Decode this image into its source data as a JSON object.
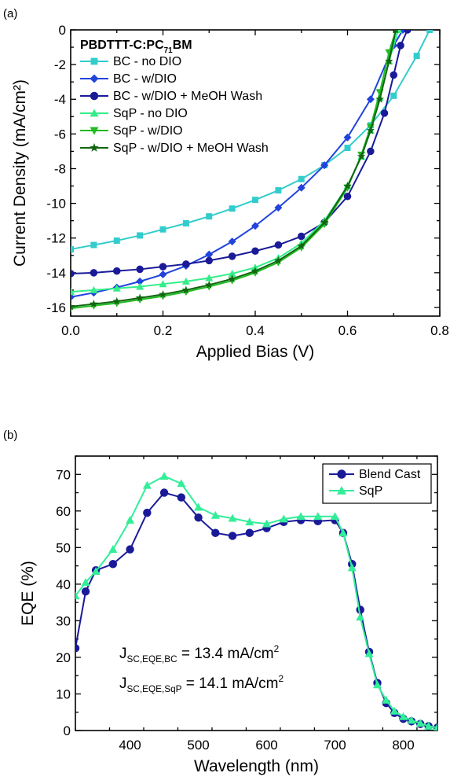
{
  "figure": {
    "panel_a_label": "(a)",
    "panel_b_label": "(b)"
  },
  "chart_data": [
    {
      "type": "line",
      "panel": "(a)",
      "xlabel": "Applied Bias (V)",
      "ylabel": "Current Density (mA/cm²)",
      "xlim": [
        0.0,
        0.8
      ],
      "ylim": [
        -16.5,
        0
      ],
      "xticks": [
        "0.0",
        "0.2",
        "0.4",
        "0.6",
        "0.8"
      ],
      "yticks": [
        "0",
        "-2",
        "-4",
        "-6",
        "-8",
        "-10",
        "-12",
        "-14",
        "-16"
      ],
      "grid": false,
      "legend_position": "top-left",
      "legend_title": {
        "main": "PBDTTT-C:PC",
        "sub": "71",
        "tail": "BM"
      },
      "series": [
        {
          "name": "BC - no DIO",
          "color": "#33cccc",
          "marker": "square",
          "x": [
            0.0,
            0.05,
            0.1,
            0.15,
            0.2,
            0.25,
            0.3,
            0.35,
            0.4,
            0.45,
            0.5,
            0.55,
            0.6,
            0.65,
            0.7,
            0.75,
            0.778
          ],
          "y": [
            -12.65,
            -12.4,
            -12.15,
            -11.85,
            -11.5,
            -11.15,
            -10.75,
            -10.3,
            -9.8,
            -9.25,
            -8.6,
            -7.8,
            -6.8,
            -5.5,
            -3.8,
            -1.5,
            0
          ]
        },
        {
          "name": "BC - w/DIO",
          "color": "#2244dd",
          "marker": "diamond",
          "x": [
            0.0,
            0.05,
            0.1,
            0.15,
            0.2,
            0.25,
            0.3,
            0.35,
            0.4,
            0.45,
            0.5,
            0.55,
            0.6,
            0.65,
            0.7,
            0.72
          ],
          "y": [
            -15.4,
            -15.15,
            -14.85,
            -14.5,
            -14.1,
            -13.6,
            -12.95,
            -12.2,
            -11.3,
            -10.25,
            -9.1,
            -7.8,
            -6.2,
            -4.0,
            -0.9,
            0
          ]
        },
        {
          "name": "BC - w/DIO + MeOH Wash",
          "color": "#1a1a99",
          "marker": "circle",
          "x": [
            0.0,
            0.05,
            0.1,
            0.15,
            0.2,
            0.25,
            0.3,
            0.35,
            0.4,
            0.45,
            0.5,
            0.55,
            0.6,
            0.65,
            0.68,
            0.7,
            0.715,
            0.73
          ],
          "y": [
            -14.05,
            -14.0,
            -13.9,
            -13.8,
            -13.65,
            -13.5,
            -13.3,
            -13.05,
            -12.75,
            -12.4,
            -11.9,
            -11.1,
            -9.6,
            -7.0,
            -4.8,
            -2.6,
            -0.9,
            0
          ]
        },
        {
          "name": "SqP - no DIO",
          "color": "#33ee88",
          "marker": "triangle-up",
          "x": [
            0.0,
            0.05,
            0.1,
            0.15,
            0.2,
            0.25,
            0.3,
            0.35,
            0.4,
            0.45,
            0.5,
            0.55,
            0.6,
            0.63,
            0.65,
            0.67,
            0.69,
            0.71
          ],
          "y": [
            -15.1,
            -15.0,
            -14.9,
            -14.8,
            -14.65,
            -14.5,
            -14.3,
            -14.05,
            -13.7,
            -13.15,
            -12.3,
            -11.0,
            -9.0,
            -7.3,
            -5.8,
            -3.9,
            -1.8,
            0
          ]
        },
        {
          "name": "SqP - w/DIO",
          "color": "#22bb22",
          "marker": "triangle-down",
          "x": [
            0.0,
            0.05,
            0.1,
            0.15,
            0.2,
            0.25,
            0.3,
            0.35,
            0.4,
            0.45,
            0.5,
            0.55,
            0.6,
            0.63,
            0.65,
            0.67,
            0.69,
            0.705
          ],
          "y": [
            -16.05,
            -15.9,
            -15.75,
            -15.55,
            -15.35,
            -15.1,
            -14.8,
            -14.45,
            -14.0,
            -13.4,
            -12.55,
            -11.2,
            -9.1,
            -7.2,
            -5.6,
            -3.6,
            -1.3,
            0
          ]
        },
        {
          "name": "SqP - w/DIO + MeOH Wash",
          "color": "#116611",
          "marker": "star",
          "x": [
            0.0,
            0.05,
            0.1,
            0.15,
            0.2,
            0.25,
            0.3,
            0.35,
            0.4,
            0.45,
            0.5,
            0.55,
            0.6,
            0.63,
            0.65,
            0.67,
            0.69,
            0.705
          ],
          "y": [
            -15.95,
            -15.8,
            -15.65,
            -15.45,
            -15.25,
            -15.0,
            -14.7,
            -14.35,
            -13.9,
            -13.3,
            -12.45,
            -11.1,
            -9.0,
            -7.3,
            -5.8,
            -4.0,
            -1.8,
            0
          ]
        }
      ]
    },
    {
      "type": "line",
      "panel": "(b)",
      "xlabel": "Wavelength (nm)",
      "ylabel": "EQE (%)",
      "xlim": [
        320,
        850
      ],
      "ylim": [
        0,
        75
      ],
      "xticks": [
        "400",
        "500",
        "600",
        "700",
        "800"
      ],
      "yticks": [
        "0",
        "10",
        "20",
        "30",
        "40",
        "50",
        "60",
        "70"
      ],
      "grid": false,
      "legend_position": "top-right",
      "annotations": [
        {
          "main": "J",
          "sub": "SC,EQE,BC",
          "tail": " = 13.4 mA/cm",
          "sup": "2"
        },
        {
          "main": "J",
          "sub": "SC,EQE,SqP",
          "tail": " = 14.1 mA/cm",
          "sup": "2"
        }
      ],
      "series": [
        {
          "name": "Blend Cast",
          "color": "#1a1a99",
          "marker": "circle",
          "x": [
            320,
            335,
            350,
            375,
            400,
            425,
            450,
            475,
            500,
            525,
            550,
            575,
            600,
            625,
            650,
            675,
            700,
            712,
            725,
            737,
            750,
            762,
            775,
            787,
            800,
            812,
            825,
            837,
            850
          ],
          "y": [
            22.5,
            38,
            43.8,
            45.5,
            49.5,
            59.5,
            65,
            63.7,
            58.2,
            54,
            53.2,
            54,
            55.3,
            57,
            57.5,
            57.2,
            57.5,
            54,
            45.5,
            33,
            21.5,
            13,
            7.5,
            4.8,
            3.2,
            2.5,
            1.8,
            1.2,
            0.8
          ]
        },
        {
          "name": "SqP",
          "color": "#33ee99",
          "marker": "triangle-up",
          "x": [
            320,
            335,
            350,
            375,
            400,
            425,
            450,
            475,
            500,
            525,
            550,
            575,
            600,
            625,
            650,
            675,
            700,
            712,
            725,
            737,
            750,
            762,
            775,
            787,
            800,
            812,
            825,
            837,
            850
          ],
          "y": [
            36.8,
            40.5,
            43.5,
            49.5,
            57.5,
            67,
            69.5,
            67.5,
            61,
            58.8,
            58,
            57,
            56.5,
            57.8,
            58.5,
            58.5,
            58.5,
            54,
            44.5,
            31,
            21,
            12.5,
            8.3,
            5.3,
            3.8,
            2.8,
            2,
            1.2,
            0.8
          ]
        }
      ]
    }
  ]
}
